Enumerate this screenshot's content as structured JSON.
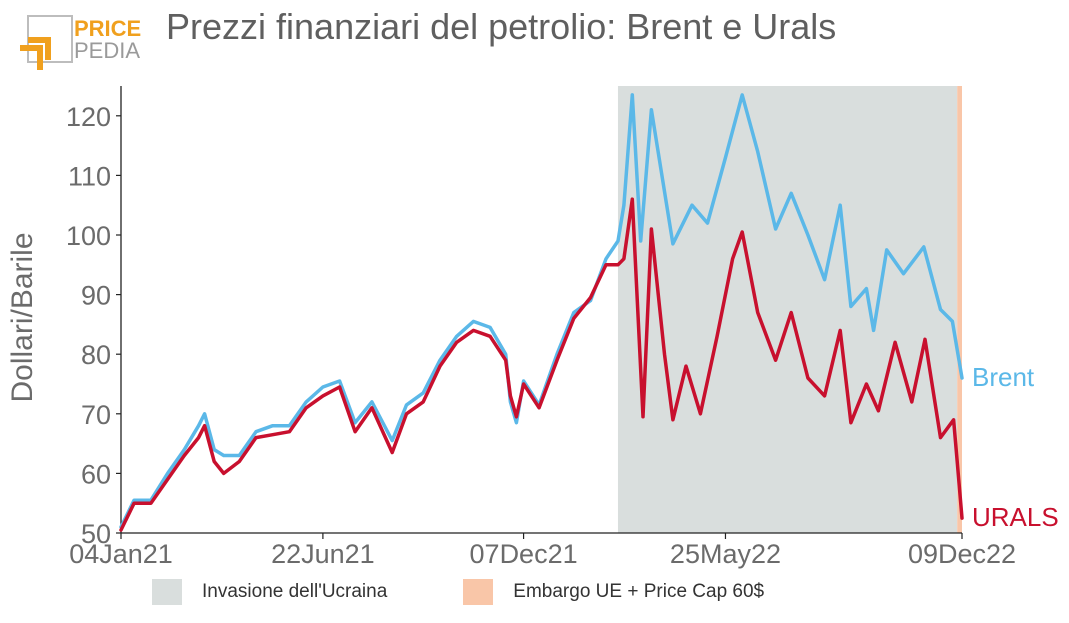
{
  "header": {
    "title": "Prezzi finanziari del petrolio: Brent e Urals",
    "logo_top": "PRICE",
    "logo_bottom": "PEDIA"
  },
  "colors": {
    "brent": "#5bb8e8",
    "urals": "#c8102e",
    "shade_invasion": "#d9dedd",
    "shade_embargo": "#f9c6a8",
    "logo_orange": "#f0a01e",
    "text": "#6b6b6b"
  },
  "chart_data": {
    "type": "line",
    "title": "Prezzi finanziari del petrolio: Brent e Urals",
    "xlabel": "",
    "ylabel": "Dollari/Barile",
    "ylim": [
      50,
      125
    ],
    "yticks": [
      50,
      60,
      70,
      80,
      90,
      100,
      110,
      120
    ],
    "x_start": "2021-01-04",
    "x_end": "2022-12-09",
    "xticks": [
      {
        "date": "2021-01-04",
        "label": "04Jan21"
      },
      {
        "date": "2021-06-22",
        "label": "22Jun21"
      },
      {
        "date": "2021-12-07",
        "label": "07Dec21"
      },
      {
        "date": "2022-05-25",
        "label": "25May22"
      },
      {
        "date": "2022-12-09",
        "label": "09Dec22"
      }
    ],
    "grid": false,
    "legend": "bottom",
    "shaded_regions": [
      {
        "label": "Invasione dell'Ucraina",
        "from": "2022-02-24",
        "to": "2022-12-05",
        "color_key": "shade_invasion"
      },
      {
        "label": "Embargo UE + Price Cap 60$",
        "from": "2022-12-05",
        "to": "2022-12-09",
        "color_key": "shade_embargo"
      }
    ],
    "series": [
      {
        "name": "Brent",
        "color_key": "brent",
        "end_label": "Brent",
        "points": [
          [
            "2021-01-04",
            51
          ],
          [
            "2021-01-15",
            55.5
          ],
          [
            "2021-01-29",
            55.5
          ],
          [
            "2021-02-12",
            60
          ],
          [
            "2021-02-26",
            64
          ],
          [
            "2021-03-10",
            68
          ],
          [
            "2021-03-15",
            70
          ],
          [
            "2021-03-23",
            64
          ],
          [
            "2021-03-31",
            63
          ],
          [
            "2021-04-13",
            63
          ],
          [
            "2021-04-27",
            67
          ],
          [
            "2021-05-11",
            68
          ],
          [
            "2021-05-25",
            68
          ],
          [
            "2021-06-08",
            72
          ],
          [
            "2021-06-22",
            74.5
          ],
          [
            "2021-07-06",
            75.5
          ],
          [
            "2021-07-19",
            68.5
          ],
          [
            "2021-08-02",
            72
          ],
          [
            "2021-08-19",
            65.5
          ],
          [
            "2021-08-31",
            71.5
          ],
          [
            "2021-09-14",
            73.5
          ],
          [
            "2021-09-28",
            79
          ],
          [
            "2021-10-12",
            83
          ],
          [
            "2021-10-26",
            85.5
          ],
          [
            "2021-11-09",
            84.5
          ],
          [
            "2021-11-22",
            80
          ],
          [
            "2021-11-26",
            72
          ],
          [
            "2021-12-01",
            68.5
          ],
          [
            "2021-12-07",
            75.5
          ],
          [
            "2021-12-20",
            71.5
          ],
          [
            "2022-01-04",
            80
          ],
          [
            "2022-01-18",
            87
          ],
          [
            "2022-02-01",
            89
          ],
          [
            "2022-02-14",
            96
          ],
          [
            "2022-02-24",
            99
          ],
          [
            "2022-03-01",
            105
          ],
          [
            "2022-03-08",
            123.5
          ],
          [
            "2022-03-15",
            99
          ],
          [
            "2022-03-24",
            121
          ],
          [
            "2022-04-11",
            98.5
          ],
          [
            "2022-04-27",
            105
          ],
          [
            "2022-05-10",
            102
          ],
          [
            "2022-05-25",
            113
          ],
          [
            "2022-06-08",
            123.5
          ],
          [
            "2022-06-21",
            114
          ],
          [
            "2022-07-06",
            101
          ],
          [
            "2022-07-19",
            107
          ],
          [
            "2022-08-02",
            100
          ],
          [
            "2022-08-16",
            92.5
          ],
          [
            "2022-08-29",
            105
          ],
          [
            "2022-09-07",
            88
          ],
          [
            "2022-09-20",
            91
          ],
          [
            "2022-09-26",
            84
          ],
          [
            "2022-10-07",
            97.5
          ],
          [
            "2022-10-21",
            93.5
          ],
          [
            "2022-11-07",
            98
          ],
          [
            "2022-11-21",
            87.5
          ],
          [
            "2022-12-01",
            85.5
          ],
          [
            "2022-12-09",
            76
          ]
        ]
      },
      {
        "name": "URALS",
        "color_key": "urals",
        "end_label": "URALS",
        "points": [
          [
            "2021-01-04",
            50.5
          ],
          [
            "2021-01-15",
            55
          ],
          [
            "2021-01-29",
            55
          ],
          [
            "2021-02-12",
            59
          ],
          [
            "2021-02-26",
            63
          ],
          [
            "2021-03-10",
            66
          ],
          [
            "2021-03-15",
            68
          ],
          [
            "2021-03-23",
            62
          ],
          [
            "2021-03-31",
            60
          ],
          [
            "2021-04-13",
            62
          ],
          [
            "2021-04-27",
            66
          ],
          [
            "2021-05-11",
            66.5
          ],
          [
            "2021-05-25",
            67
          ],
          [
            "2021-06-08",
            71
          ],
          [
            "2021-06-22",
            73
          ],
          [
            "2021-07-06",
            74.5
          ],
          [
            "2021-07-19",
            67
          ],
          [
            "2021-08-02",
            71
          ],
          [
            "2021-08-19",
            63.5
          ],
          [
            "2021-08-31",
            70
          ],
          [
            "2021-09-14",
            72
          ],
          [
            "2021-09-28",
            78
          ],
          [
            "2021-10-12",
            82
          ],
          [
            "2021-10-26",
            84
          ],
          [
            "2021-11-09",
            83
          ],
          [
            "2021-11-22",
            79
          ],
          [
            "2021-11-26",
            73
          ],
          [
            "2021-12-01",
            69.5
          ],
          [
            "2021-12-07",
            75
          ],
          [
            "2021-12-20",
            71
          ],
          [
            "2022-01-04",
            79
          ],
          [
            "2022-01-18",
            86
          ],
          [
            "2022-02-01",
            89.5
          ],
          [
            "2022-02-14",
            95
          ],
          [
            "2022-02-24",
            95
          ],
          [
            "2022-03-01",
            96
          ],
          [
            "2022-03-08",
            106
          ],
          [
            "2022-03-17",
            69.5
          ],
          [
            "2022-03-24",
            101
          ],
          [
            "2022-04-04",
            80
          ],
          [
            "2022-04-11",
            69
          ],
          [
            "2022-04-22",
            78
          ],
          [
            "2022-05-04",
            70
          ],
          [
            "2022-05-18",
            83
          ],
          [
            "2022-05-31",
            96
          ],
          [
            "2022-06-08",
            100.5
          ],
          [
            "2022-06-21",
            87
          ],
          [
            "2022-07-06",
            79
          ],
          [
            "2022-07-19",
            87
          ],
          [
            "2022-08-02",
            76
          ],
          [
            "2022-08-16",
            73
          ],
          [
            "2022-08-29",
            84
          ],
          [
            "2022-09-07",
            68.5
          ],
          [
            "2022-09-20",
            75
          ],
          [
            "2022-09-30",
            70.5
          ],
          [
            "2022-10-14",
            82
          ],
          [
            "2022-10-28",
            72
          ],
          [
            "2022-11-08",
            82.5
          ],
          [
            "2022-11-21",
            66
          ],
          [
            "2022-12-02",
            69
          ],
          [
            "2022-12-05",
            62
          ],
          [
            "2022-12-09",
            52.5
          ]
        ]
      }
    ]
  },
  "legend": {
    "items": [
      {
        "label": "Invasione dell'Ucraina",
        "color_key": "shade_invasion"
      },
      {
        "label": "Embargo UE + Price Cap 60$",
        "color_key": "shade_embargo"
      }
    ]
  }
}
